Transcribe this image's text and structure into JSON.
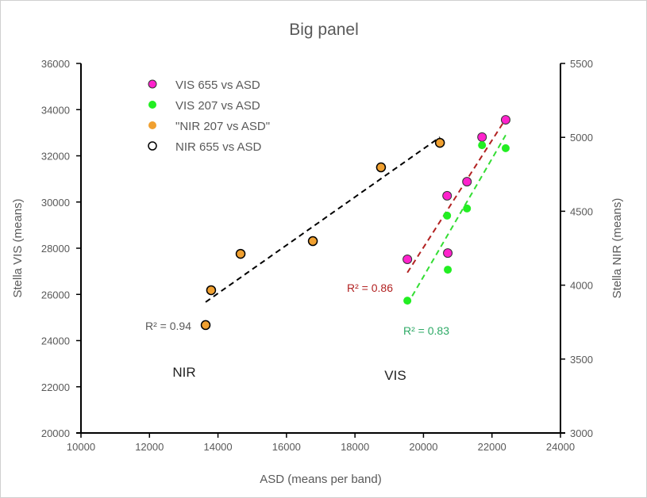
{
  "chart_data": {
    "type": "scatter",
    "title": "Big panel",
    "xlabel": "ASD (means per band)",
    "ylabel_left": "Stella VIS (means)",
    "ylabel_right": "Stella NIR (means)",
    "xlim": [
      10000,
      24000
    ],
    "ylim_left": [
      20000,
      36000
    ],
    "ylim_right": [
      3000,
      5500
    ],
    "x_ticks": [
      "10000",
      "12000",
      "14000",
      "16000",
      "18000",
      "20000",
      "22000",
      "24000"
    ],
    "y_ticks_left": [
      "20000",
      "22000",
      "24000",
      "26000",
      "28000",
      "30000",
      "32000",
      "34000",
      "36000"
    ],
    "y_ticks_right": [
      "3000",
      "3500",
      "4000",
      "4500",
      "5000",
      "5500"
    ],
    "grid": false,
    "legend_position": "top-left",
    "series": [
      {
        "name": "VIS 655 vs ASD",
        "axis": "left",
        "color": "#ff22cc",
        "marker": "filled-outlined",
        "x": [
          19530,
          20690,
          20710,
          21270,
          21710,
          22400
        ],
        "y": [
          27520,
          30270,
          27790,
          30880,
          32810,
          33560
        ],
        "trendline": {
          "color": "#b22222",
          "label": "R² = 0.86"
        }
      },
      {
        "name": "VIS 207 vs ASD",
        "axis": "left",
        "color": "#22ee22",
        "marker": "filled",
        "x": [
          19530,
          20690,
          20710,
          21270,
          21710,
          22400
        ],
        "y": [
          25730,
          29410,
          27070,
          29720,
          32460,
          32330
        ],
        "trendline": {
          "color": "#33dd33",
          "label": "R² = 0.83",
          "label_color": "#2eaa66"
        }
      },
      {
        "name": "\"NIR 207 vs ASD\"",
        "axis": "right",
        "color": "#f0a030",
        "marker": "filled",
        "x": [
          13640,
          13800,
          14660,
          16770,
          18760,
          20480
        ],
        "y": [
          3730,
          3966,
          4212,
          4298,
          4797,
          4963
        ],
        "trendline": {
          "color": "#000000",
          "label": "R² = 0.94",
          "label_color": "#595959"
        }
      },
      {
        "name": "NIR 655 vs ASD",
        "axis": "right",
        "color": "#000000",
        "marker": "open",
        "x": [
          13640,
          13800,
          14660,
          16770,
          18760,
          20480
        ],
        "y": [
          3730,
          3966,
          4212,
          4298,
          4797,
          4963
        ]
      }
    ],
    "annotations": [
      "NIR",
      "VIS"
    ]
  }
}
